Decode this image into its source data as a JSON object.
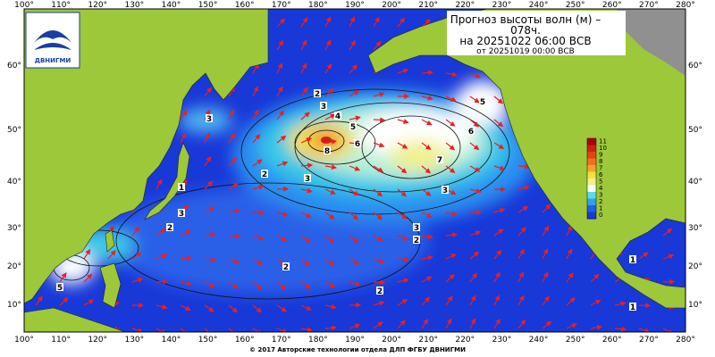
{
  "header": {
    "title_lines": [
      "Прогноз высоты волн (м) –",
      "078ч.",
      "на 20251022 06:00 ВСВ"
    ],
    "issued": "от 20251019 00:00 ВСВ",
    "logo": "ДВНИГМИ"
  },
  "map": {
    "lon_labels": [
      "100°",
      "110°",
      "120°",
      "130°",
      "140°",
      "150°",
      "160°",
      "170°",
      "180°",
      "190°",
      "200°",
      "210°",
      "220°",
      "230°",
      "240°",
      "250°",
      "260°",
      "270°",
      "280°"
    ],
    "lat_labels": [
      "60°",
      "50°",
      "40°",
      "30°",
      "20°",
      "10°"
    ],
    "contour_labels": [
      "2",
      "3",
      "4",
      "5",
      "6",
      "8",
      "7",
      "6",
      "5",
      "3",
      "3",
      "2",
      "3",
      "2",
      "1",
      "3",
      "2",
      "1",
      "5",
      "2",
      "1",
      "2",
      "3"
    ]
  },
  "colorbar": {
    "labels": [
      "11",
      "10",
      "9",
      "8",
      "7",
      "6",
      "5",
      "4",
      "3",
      "2",
      "1",
      "0"
    ]
  },
  "footer": "© 2017 Авторские технологии отдела ДЛП ФГБУ ДВНИГМИ"
}
